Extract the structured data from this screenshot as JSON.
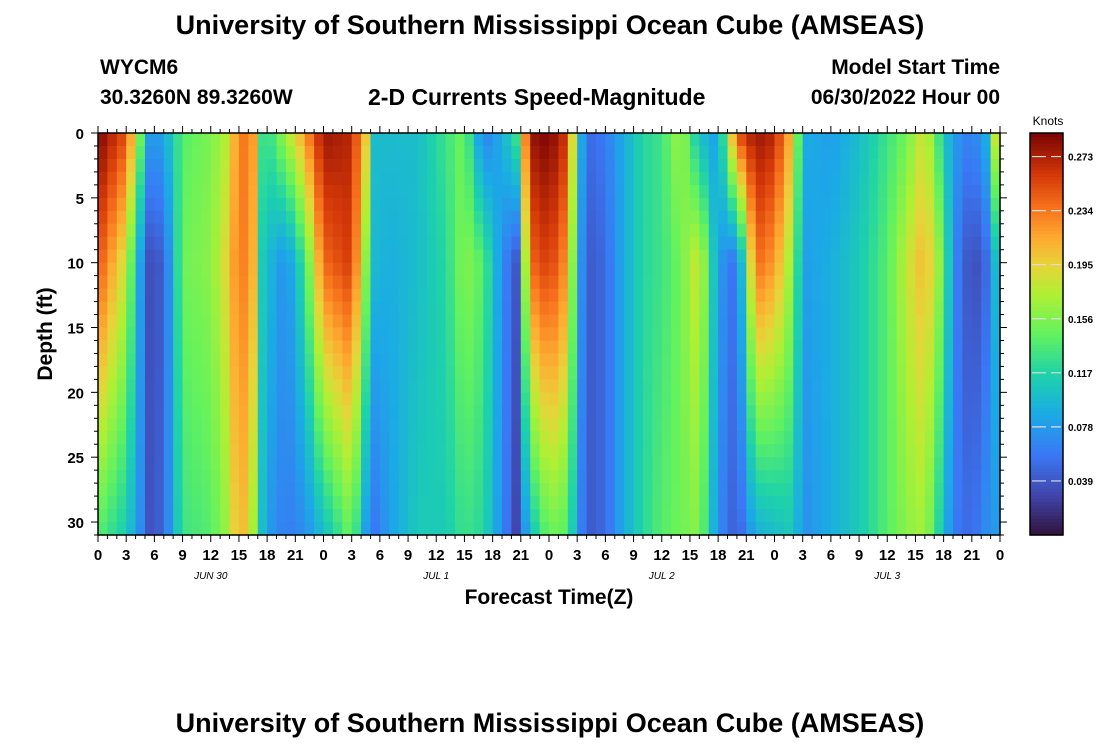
{
  "page": {
    "title_top": "University of Southern Mississippi Ocean Cube (AMSEAS)",
    "title_bottom": "University of Southern Mississippi Ocean Cube (AMSEAS)",
    "station_id": "WYCM6",
    "station_coords": "30.3260N  89.3260W",
    "model_start_label": "Model Start Time",
    "model_start_value": "06/30/2022 Hour 00"
  },
  "chart_data": {
    "type": "heatmap",
    "title": "2-D Currents Speed-Magnitude",
    "xlabel": "Forecast Time(Z)",
    "ylabel": "Depth (ft)",
    "xlim": [
      0,
      96
    ],
    "ylim": [
      0,
      31
    ],
    "x_ticks": [
      0,
      3,
      6,
      9,
      12,
      15,
      18,
      21,
      24,
      27,
      30,
      33,
      36,
      39,
      42,
      45,
      48,
      51,
      54,
      57,
      60,
      63,
      66,
      69,
      72,
      75,
      78,
      81,
      84,
      87,
      90,
      93,
      96
    ],
    "x_tick_labels": [
      "0",
      "3",
      "6",
      "9",
      "12",
      "15",
      "18",
      "21",
      "0",
      "3",
      "6",
      "9",
      "12",
      "15",
      "18",
      "21",
      "0",
      "3",
      "6",
      "9",
      "12",
      "15",
      "18",
      "21",
      "0",
      "3",
      "6",
      "9",
      "12",
      "15",
      "18",
      "21",
      "0"
    ],
    "y_ticks": [
      0,
      5,
      10,
      15,
      20,
      25,
      30
    ],
    "y_tick_labels": [
      "0",
      "5",
      "10",
      "15",
      "20",
      "25",
      "30"
    ],
    "day_labels": [
      {
        "x": 12,
        "text": "JUN 30"
      },
      {
        "x": 36,
        "text": "JUL 1"
      },
      {
        "x": 60,
        "text": "JUL 2"
      },
      {
        "x": 84,
        "text": "JUL 3"
      }
    ],
    "colorbar": {
      "title": "Knots",
      "min": 0.0,
      "max": 0.29,
      "ticks": [
        0.039,
        0.078,
        0.117,
        0.156,
        0.195,
        0.234,
        0.273
      ],
      "tick_labels": [
        "0.039",
        "0.078",
        "0.117",
        "0.156",
        "0.195",
        "0.234",
        "0.273"
      ]
    },
    "profile_keys": [
      {
        "t": 0,
        "s0": 0.29,
        "s10": 0.25,
        "s31": 0.14
      },
      {
        "t": 3,
        "s0": 0.25,
        "s10": 0.18,
        "s31": 0.11
      },
      {
        "t": 4.5,
        "s0": 0.15,
        "s10": 0.08,
        "s31": 0.07
      },
      {
        "t": 5,
        "s0": 0.09,
        "s10": 0.045,
        "s31": 0.045
      },
      {
        "t": 6,
        "s0": 0.07,
        "s10": 0.025,
        "s31": 0.03
      },
      {
        "t": 7.5,
        "s0": 0.1,
        "s10": 0.07,
        "s31": 0.07
      },
      {
        "t": 9,
        "s0": 0.14,
        "s10": 0.15,
        "s31": 0.13
      },
      {
        "t": 12,
        "s0": 0.155,
        "s10": 0.16,
        "s31": 0.14
      },
      {
        "t": 14,
        "s0": 0.18,
        "s10": 0.2,
        "s31": 0.17
      },
      {
        "t": 15,
        "s0": 0.24,
        "s10": 0.24,
        "s31": 0.22
      },
      {
        "t": 16.5,
        "s0": 0.22,
        "s10": 0.21,
        "s31": 0.17
      },
      {
        "t": 17,
        "s0": 0.14,
        "s10": 0.12,
        "s31": 0.12
      },
      {
        "t": 18,
        "s0": 0.12,
        "s10": 0.1,
        "s31": 0.08
      },
      {
        "t": 20,
        "s0": 0.17,
        "s10": 0.07,
        "s31": 0.06
      },
      {
        "t": 22,
        "s0": 0.22,
        "s10": 0.13,
        "s31": 0.07
      },
      {
        "t": 24,
        "s0": 0.28,
        "s10": 0.24,
        "s31": 0.1
      },
      {
        "t": 27,
        "s0": 0.27,
        "s10": 0.26,
        "s31": 0.15
      },
      {
        "t": 28.5,
        "s0": 0.2,
        "s10": 0.16,
        "s31": 0.08
      },
      {
        "t": 29,
        "s0": 0.1,
        "s10": 0.1,
        "s31": 0.05
      },
      {
        "t": 31,
        "s0": 0.1,
        "s10": 0.09,
        "s31": 0.08
      },
      {
        "t": 34,
        "s0": 0.1,
        "s10": 0.1,
        "s31": 0.11
      },
      {
        "t": 37,
        "s0": 0.13,
        "s10": 0.12,
        "s31": 0.11
      },
      {
        "t": 39,
        "s0": 0.15,
        "s10": 0.16,
        "s31": 0.13
      },
      {
        "t": 41,
        "s0": 0.06,
        "s10": 0.14,
        "s31": 0.12
      },
      {
        "t": 43,
        "s0": 0.09,
        "s10": 0.07,
        "s31": 0.07
      },
      {
        "t": 44.5,
        "s0": 0.13,
        "s10": 0.04,
        "s31": 0.03
      },
      {
        "t": 46,
        "s0": 0.28,
        "s10": 0.24,
        "s31": 0.1
      },
      {
        "t": 48,
        "s0": 0.29,
        "s10": 0.26,
        "s31": 0.15
      },
      {
        "t": 50,
        "s0": 0.26,
        "s10": 0.22,
        "s31": 0.14
      },
      {
        "t": 51,
        "s0": 0.12,
        "s10": 0.1,
        "s31": 0.08
      },
      {
        "t": 52,
        "s0": 0.05,
        "s10": 0.04,
        "s31": 0.04
      },
      {
        "t": 54,
        "s0": 0.06,
        "s10": 0.05,
        "s31": 0.05
      },
      {
        "t": 56,
        "s0": 0.09,
        "s10": 0.09,
        "s31": 0.09
      },
      {
        "t": 58,
        "s0": 0.12,
        "s10": 0.12,
        "s31": 0.12
      },
      {
        "t": 60,
        "s0": 0.13,
        "s10": 0.13,
        "s31": 0.14
      },
      {
        "t": 62,
        "s0": 0.17,
        "s10": 0.15,
        "s31": 0.15
      },
      {
        "t": 64,
        "s0": 0.1,
        "s10": 0.19,
        "s31": 0.16
      },
      {
        "t": 66,
        "s0": 0.08,
        "s10": 0.08,
        "s31": 0.07
      },
      {
        "t": 68,
        "s0": 0.25,
        "s10": 0.05,
        "s31": 0.04
      },
      {
        "t": 70,
        "s0": 0.28,
        "s10": 0.24,
        "s31": 0.09
      },
      {
        "t": 72,
        "s0": 0.27,
        "s10": 0.22,
        "s31": 0.1
      },
      {
        "t": 74,
        "s0": 0.2,
        "s10": 0.16,
        "s31": 0.11
      },
      {
        "t": 75,
        "s0": 0.09,
        "s10": 0.08,
        "s31": 0.07
      },
      {
        "t": 78,
        "s0": 0.08,
        "s10": 0.09,
        "s31": 0.09
      },
      {
        "t": 81,
        "s0": 0.1,
        "s10": 0.11,
        "s31": 0.11
      },
      {
        "t": 84,
        "s0": 0.13,
        "s10": 0.14,
        "s31": 0.14
      },
      {
        "t": 86,
        "s0": 0.15,
        "s10": 0.18,
        "s31": 0.16
      },
      {
        "t": 88,
        "s0": 0.19,
        "s10": 0.21,
        "s31": 0.17
      },
      {
        "t": 90,
        "s0": 0.11,
        "s10": 0.15,
        "s31": 0.1
      },
      {
        "t": 91,
        "s0": 0.08,
        "s10": 0.07,
        "s31": 0.06
      },
      {
        "t": 93,
        "s0": 0.06,
        "s10": 0.03,
        "s31": 0.05
      },
      {
        "t": 94.5,
        "s0": 0.09,
        "s10": 0.05,
        "s31": 0.07
      },
      {
        "t": 96,
        "s0": 0.23,
        "s10": 0.12,
        "s31": 0.08
      }
    ]
  }
}
